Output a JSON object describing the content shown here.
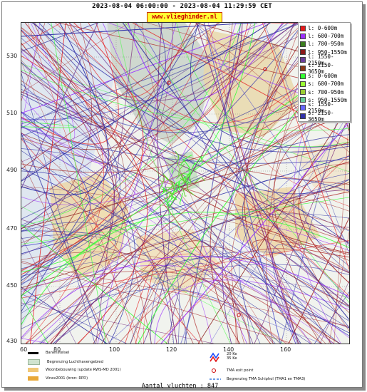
{
  "header": {
    "title": "2023-08-04 06:00:00 - 2023-08-04 11:29:59 CET",
    "site_badge": "www.vlieghinder.nl"
  },
  "map": {
    "y_ticks": [
      "530",
      "510",
      "490",
      "470",
      "450",
      "430"
    ],
    "x_ticks": [
      "60",
      "80",
      "100",
      "120",
      "140",
      "160"
    ]
  },
  "legend": {
    "items": [
      {
        "label": "l: 0-600m",
        "color": "#e41a1c"
      },
      {
        "label": "l: 600-700m",
        "color": "#9b30ff"
      },
      {
        "label": "l: 700-950m",
        "color": "#3a7d1e"
      },
      {
        "label": "l: 950-1550m",
        "color": "#8b1a1a"
      },
      {
        "label": "l: 1550-2150m",
        "color": "#6a3d9a"
      },
      {
        "label": "l: 2150-3650m",
        "color": "#8b3a1a"
      },
      {
        "label": "s: 0-600m",
        "color": "#33ff33"
      },
      {
        "label": "s: 600-700m",
        "color": "#99ff33"
      },
      {
        "label": "s: 700-950m",
        "color": "#99cc33"
      },
      {
        "label": "s: 950-1550m",
        "color": "#66cc99"
      },
      {
        "label": "s: 1550-2150m",
        "color": "#6666ff"
      },
      {
        "label": "s: 2150-3650m",
        "color": "#3333aa"
      }
    ]
  },
  "map_legend": {
    "runway": "Banenstelsel",
    "airport_boundary": "Begrenzing Luchthavengebied",
    "housing": "Woonbebouwing (update RWS-MD 2001)",
    "vinex": "Vinex2001 (bron: RPD)",
    "ke35": "35 Ke",
    "ke20": "20 Ke",
    "tma_exit": "TMA exit point",
    "tma_boundary": "Begrenzing TMA Schiphol  (TMA1 en TMA3)"
  },
  "footer": {
    "flight_count": "Aantal vluchten : 847"
  }
}
